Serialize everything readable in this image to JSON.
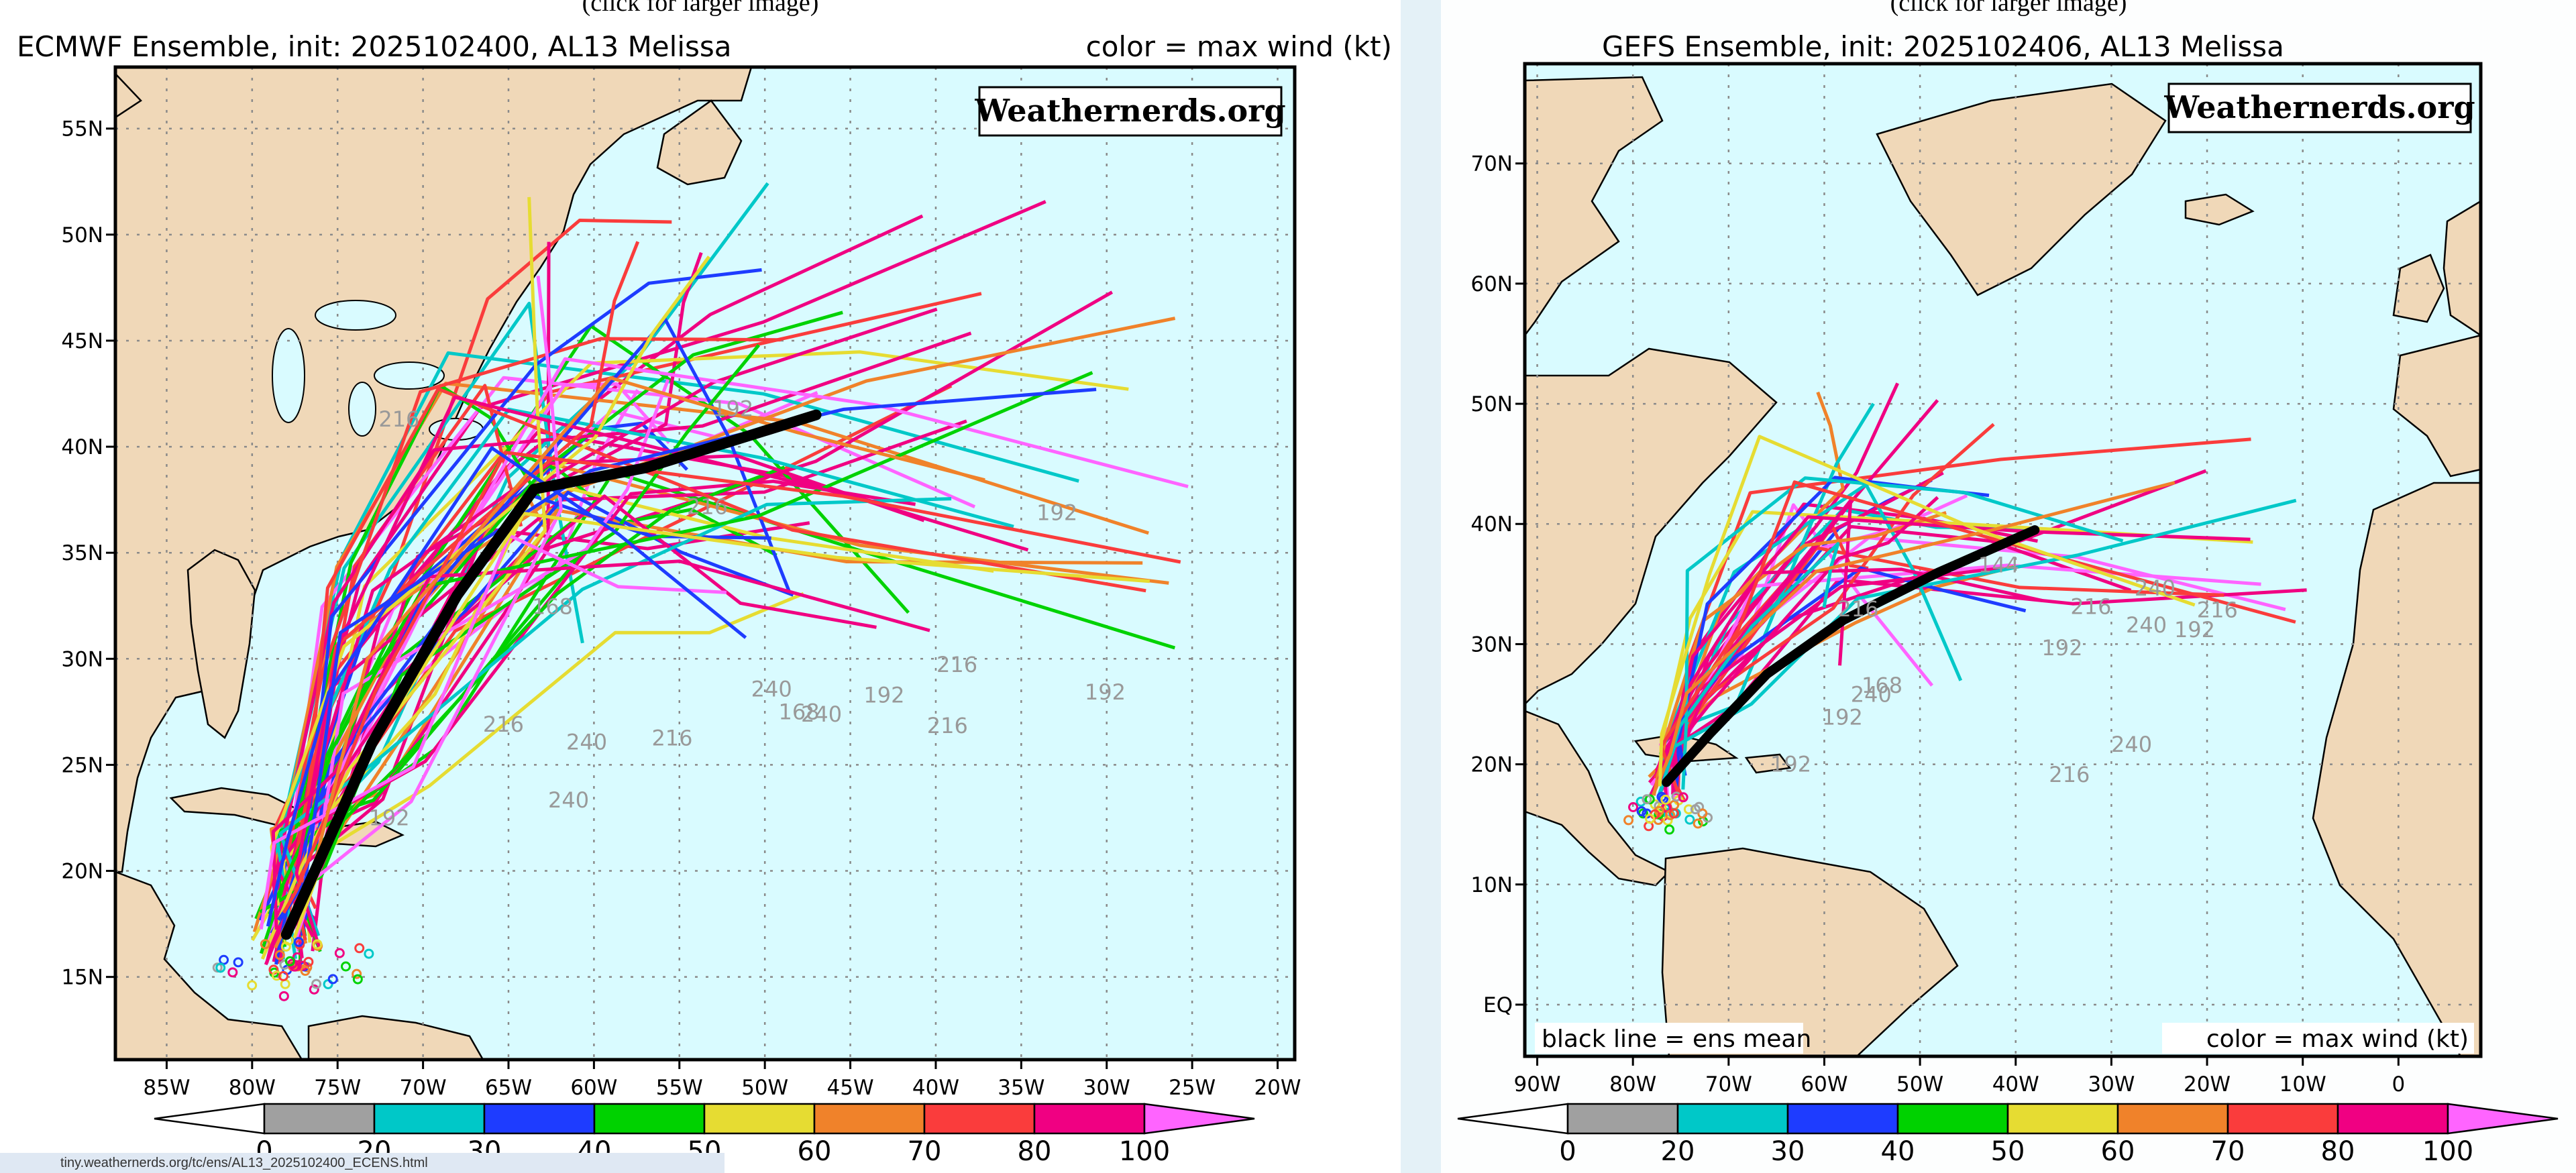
{
  "colors": {
    "ocean": "#d9fbff",
    "land": "#f0d8b8",
    "mean_track": "#000000",
    "grid": "#8a8a8a"
  },
  "wind_scale": {
    "thresholds": [
      "0",
      "20",
      "30",
      "40",
      "50",
      "60",
      "70",
      "80",
      "100"
    ],
    "colors": [
      "#ffffff",
      "#a0a0a0",
      "#00c8c8",
      "#1e3cff",
      "#00d200",
      "#e6dc32",
      "#f0822a",
      "#fa3c3c",
      "#f00082",
      "#ff64ff"
    ]
  },
  "ecmwf": {
    "click_note": "(click for larger image)",
    "title": "ECMWF Ensemble, init: 2025102400, AL13 Melissa",
    "legend_note": "color = max wind (kt)",
    "brand": "Weathernerds.org",
    "lat_labels": [
      "55N",
      "50N",
      "45N",
      "40N",
      "35N",
      "30N",
      "25N",
      "20N",
      "15N"
    ],
    "lon_labels": [
      "85W",
      "80W",
      "75W",
      "70W",
      "65W",
      "60W",
      "55W",
      "50W",
      "45W",
      "40W",
      "35W",
      "30W",
      "25W",
      "20W"
    ],
    "hour_labels": [
      "240",
      "216",
      "216",
      "192",
      "216",
      "240",
      "240",
      "216",
      "192",
      "168",
      "240",
      "216",
      "192",
      "168",
      "192",
      "216",
      "192"
    ],
    "mean_track": [
      [
        -78.0,
        17.0
      ],
      [
        -73.0,
        26.0
      ],
      [
        -68.0,
        33.0
      ],
      [
        -63.5,
        38.0
      ],
      [
        -57.0,
        39.0
      ],
      [
        -47.0,
        41.5
      ]
    ]
  },
  "gefs": {
    "click_note": "(click for larger image)",
    "title": "GEFS Ensemble, init: 2025102406, AL13 Melissa",
    "legend_note": "color = max wind (kt)",
    "mean_note": "black line = ens mean",
    "brand": "Weathernerds.org",
    "lat_labels": [
      "70N",
      "60N",
      "50N",
      "40N",
      "30N",
      "20N",
      "10N",
      "EQ"
    ],
    "lon_labels": [
      "90W",
      "80W",
      "70W",
      "60W",
      "50W",
      "40W",
      "30W",
      "20W",
      "10W",
      "0"
    ],
    "hour_labels": [
      "240",
      "216",
      "240",
      "216",
      "192",
      "168",
      "192",
      "192",
      "216",
      "240",
      "240",
      "216",
      "192",
      "144"
    ],
    "mean_track": [
      [
        -76.5,
        18.5
      ],
      [
        -72.0,
        22.5
      ],
      [
        -66.0,
        27.5
      ],
      [
        -58.0,
        32.0
      ],
      [
        -48.0,
        36.0
      ],
      [
        -38.0,
        39.5
      ]
    ]
  },
  "status_url": "tiny.weathernerds.org/tc/ens/AL13_2025102400_ECENS.html"
}
